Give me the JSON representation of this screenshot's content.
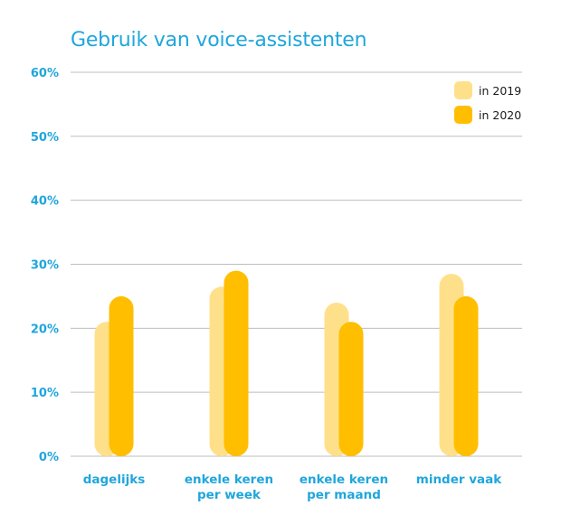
{
  "chart_data": {
    "type": "bar",
    "title": "Gebruik van voice-assistenten",
    "categories": [
      "dagelijks",
      "enkele keren per week",
      "enkele keren per maand",
      "minder vaak"
    ],
    "category_lines": [
      [
        "dagelijks"
      ],
      [
        "enkele keren",
        "per week"
      ],
      [
        "enkele keren",
        "per maand"
      ],
      [
        "minder vaak"
      ]
    ],
    "series": [
      {
        "name": "in 2019",
        "values": [
          21,
          26.5,
          24,
          28.5
        ],
        "color": "#ffe08a"
      },
      {
        "name": "in 2020",
        "values": [
          25,
          29,
          21,
          25
        ],
        "color": "#ffbe00"
      }
    ],
    "ylim": [
      0,
      60
    ],
    "yticks": [
      0,
      10,
      20,
      30,
      40,
      50,
      60
    ],
    "ytick_labels": [
      "0%",
      "10%",
      "20%",
      "30%",
      "40%",
      "50%",
      "60%"
    ],
    "grid": true,
    "legend_position": "top-right",
    "xlabel": "",
    "ylabel": "",
    "colors": {
      "title": "#1fa6dc",
      "ticks": "#1fa6dc",
      "grid": "#bdbdbd"
    }
  }
}
